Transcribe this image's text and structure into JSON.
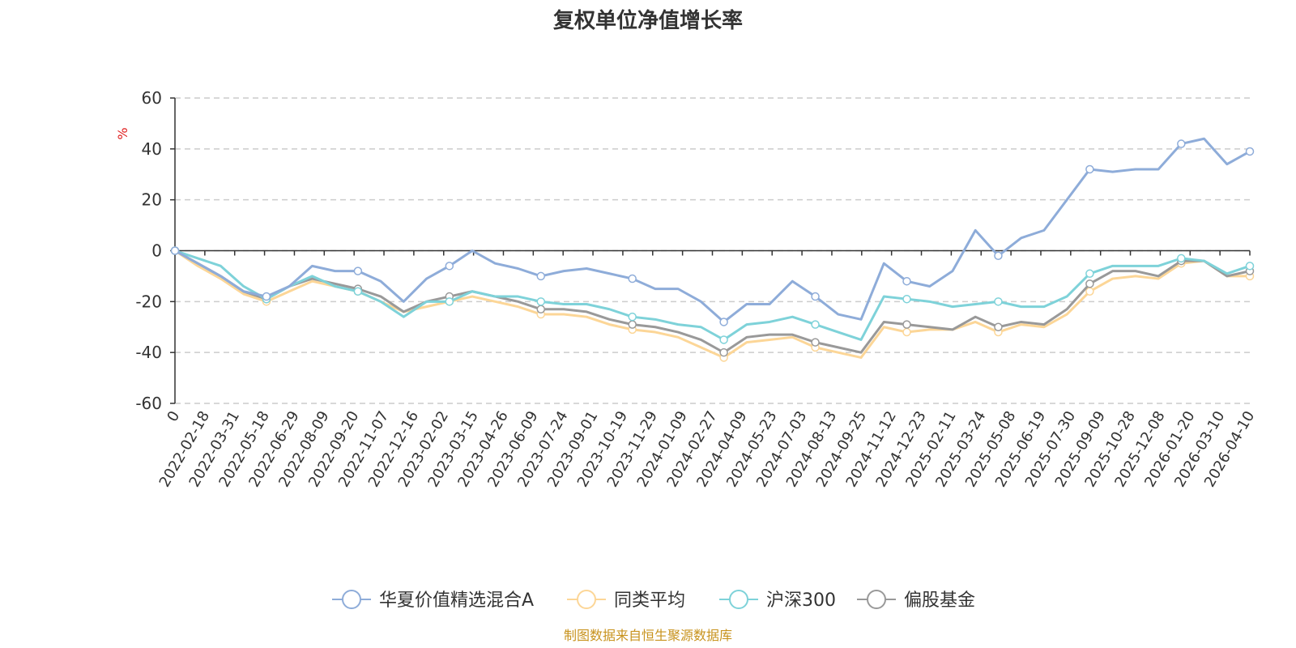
{
  "chart_data": {
    "type": "line",
    "title": "复权单位净值增长率",
    "y_unit": "%",
    "ylim": [
      -60,
      60
    ],
    "y_ticks": [
      "60",
      "40",
      "20",
      "0",
      "-20",
      "-40",
      "-60"
    ],
    "y_tick_values": [
      60,
      40,
      20,
      0,
      -20,
      -40,
      -60
    ],
    "x_ticks": [
      "0",
      "2022-02-18",
      "2022-03-31",
      "2022-05-18",
      "2022-06-29",
      "2022-08-09",
      "2022-09-20",
      "2022-11-07",
      "2022-12-16",
      "2023-02-02",
      "2023-03-15",
      "2023-04-26",
      "2023-06-09",
      "2023-07-24",
      "2023-09-01",
      "2023-10-19",
      "2023-11-29",
      "2024-01-09",
      "2024-02-27",
      "2024-04-09",
      "2024-05-23",
      "2024-07-03",
      "2024-08-13",
      "2024-09-25",
      "2024-11-12",
      "2024-12-23",
      "2025-02-11",
      "2025-03-24",
      "2025-05-08",
      "2025-06-19",
      "2025-07-30",
      "2025-09-09",
      "2025-10-28",
      "2025-12-08",
      "2026-01-20",
      "2026-03-10",
      "2026-04-10"
    ],
    "grid": true,
    "legend_position": "bottom",
    "series": [
      {
        "name": "华夏价值精选混合A",
        "color": "#8eacd9",
        "values": [
          0,
          -5,
          -10,
          -16,
          -18,
          -14,
          -6,
          -8,
          -8,
          -12,
          -20,
          -11,
          -6,
          0,
          -5,
          -7,
          -10,
          -8,
          -7,
          -9,
          -11,
          -15,
          -15,
          -20,
          -28,
          -21,
          -21,
          -12,
          -18,
          -25,
          -27,
          -5,
          -12,
          -14,
          -8,
          8,
          -2,
          5,
          8,
          20,
          32,
          31,
          32,
          32,
          42,
          44,
          34,
          39
        ]
      },
      {
        "name": "同类平均",
        "color": "#fcd697",
        "values": [
          0,
          -6,
          -11,
          -17,
          -20,
          -16,
          -12,
          -14,
          -16,
          -20,
          -24,
          -22,
          -20,
          -18,
          -20,
          -22,
          -25,
          -25,
          -26,
          -29,
          -31,
          -32,
          -34,
          -38,
          -42,
          -36,
          -35,
          -34,
          -38,
          -40,
          -42,
          -30,
          -32,
          -31,
          -31,
          -28,
          -32,
          -29,
          -30,
          -25,
          -16,
          -11,
          -10,
          -11,
          -5,
          -4,
          -10,
          -10
        ]
      },
      {
        "name": "沪深300",
        "color": "#7ed2d9",
        "values": [
          0,
          -3,
          -6,
          -14,
          -19,
          -14,
          -10,
          -14,
          -16,
          -20,
          -26,
          -20,
          -20,
          -16,
          -18,
          -18,
          -20,
          -21,
          -21,
          -23,
          -26,
          -27,
          -29,
          -30,
          -35,
          -29,
          -28,
          -26,
          -29,
          -32,
          -35,
          -18,
          -19,
          -20,
          -22,
          -21,
          -20,
          -22,
          -22,
          -18,
          -9,
          -6,
          -6,
          -6,
          -3,
          -4,
          -9,
          -6
        ]
      },
      {
        "name": "偏股基金",
        "color": "#999999",
        "values": [
          0,
          -5,
          -10,
          -16,
          -19,
          -14,
          -11,
          -13,
          -15,
          -18,
          -24,
          -20,
          -18,
          -16,
          -18,
          -20,
          -23,
          -23,
          -24,
          -27,
          -29,
          -30,
          -32,
          -35,
          -40,
          -34,
          -33,
          -33,
          -36,
          -38,
          -40,
          -28,
          -29,
          -30,
          -31,
          -26,
          -30,
          -28,
          -29,
          -23,
          -13,
          -8,
          -8,
          -10,
          -4,
          -4,
          -10,
          -8
        ]
      }
    ]
  },
  "footer": {
    "source": "制图数据来自恒生聚源数据库",
    "source_color": "#c8931e"
  },
  "colors": {
    "axis": "#333333",
    "grid": "#cccccc",
    "unit": "#e02020"
  }
}
